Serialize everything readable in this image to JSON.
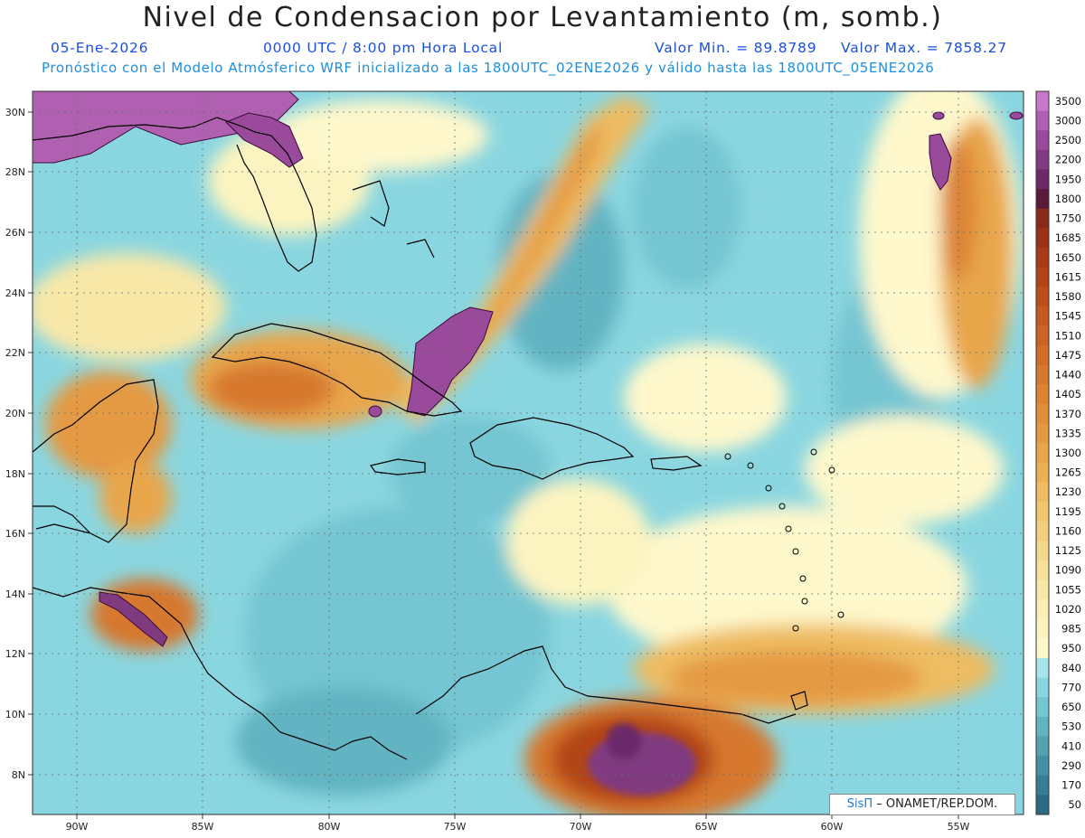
{
  "title": "Nivel de Condensacion por Levantamiento (m, somb.)",
  "date": "05-Ene-2026",
  "time": "0000 UTC / 8:00 pm Hora Local",
  "valor_min": "Valor Min. = 89.8789",
  "valor_max": "Valor Max. = 7858.27",
  "subtitle": "Pronóstico con el Modelo Atmósferico WRF inicializado a las 1800UTC_02ENE2026 y válido hasta las  1800UTC_05ENE2026",
  "credit": {
    "brand": "SisΠ",
    "text": "– ONAMET/REP.DOM."
  },
  "lat_labels": [
    "30N",
    "28N",
    "26N",
    "24N",
    "22N",
    "20N",
    "18N",
    "16N",
    "14N",
    "12N",
    "10N",
    "8N"
  ],
  "lon_labels": [
    "90W",
    "85W",
    "80W",
    "75W",
    "70W",
    "65W",
    "60W",
    "55W"
  ],
  "colorbar": {
    "labels": [
      "3500",
      "3000",
      "2500",
      "2200",
      "1950",
      "1800",
      "1750",
      "1685",
      "1650",
      "1615",
      "1580",
      "1545",
      "1510",
      "1475",
      "1440",
      "1405",
      "1370",
      "1335",
      "1300",
      "1265",
      "1230",
      "1195",
      "1160",
      "1125",
      "1090",
      "1055",
      "1020",
      "985",
      "950",
      "840",
      "770",
      "650",
      "530",
      "410",
      "290",
      "170",
      "50"
    ],
    "colors": [
      "#c878c8",
      "#b060b0",
      "#9a4a9a",
      "#803a80",
      "#6a2a6a",
      "#5a1a3a",
      "#8a2a1a",
      "#9a3218",
      "#a83a18",
      "#b44418",
      "#bd4e1c",
      "#c45a20",
      "#ca6424",
      "#d06e28",
      "#d6782e",
      "#dc8434",
      "#e08e3a",
      "#e49a42",
      "#e8a64c",
      "#ecb056",
      "#eebc62",
      "#f0c670",
      "#f2cf7e",
      "#f4d88c",
      "#f6e09a",
      "#f8e8a8",
      "#faefb4",
      "#fcf4c0",
      "#fef8cc",
      "#a8e4ec",
      "#8ad6e0",
      "#74c6d2",
      "#62b4c2",
      "#52a2b2",
      "#4490a2",
      "#387e92",
      "#2c6c82"
    ]
  },
  "colors": {
    "ocean_light": "#8ad6e0",
    "ocean_mid": "#62b4c2",
    "ocean_dark": "#4490a2",
    "pale": "#fef8cc",
    "orange": "#e49a42",
    "dark_orange": "#b44418",
    "purple": "#9a4a9a"
  }
}
